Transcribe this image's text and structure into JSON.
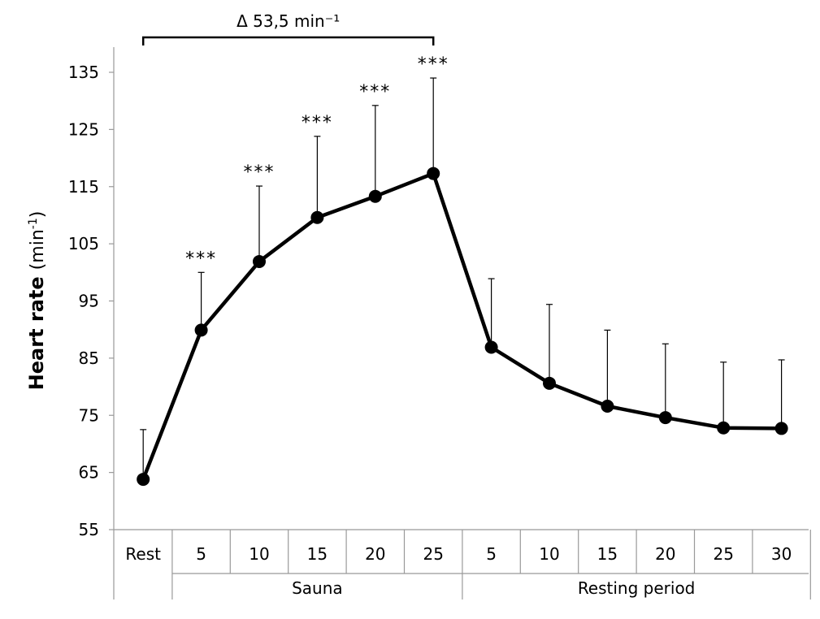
{
  "chart_data": {
    "type": "line",
    "ylabel": {
      "bold": "Heart rate",
      "unit": "(min-1)"
    },
    "ylim": [
      55,
      135
    ],
    "yticks": [
      "55",
      "65",
      "75",
      "85",
      "95",
      "105",
      "115",
      "125",
      "135"
    ],
    "categories": [
      "Rest",
      "5",
      "10",
      "15",
      "20",
      "25",
      "5",
      "10",
      "15",
      "20",
      "25",
      "30"
    ],
    "groups": [
      {
        "label": "Sauna",
        "span": [
          1,
          5
        ]
      },
      {
        "label": "Resting period",
        "span": [
          6,
          11
        ]
      }
    ],
    "series": [
      {
        "values": [
          63.8,
          89.9,
          101.9,
          109.6,
          113.3,
          117.3,
          86.9,
          80.6,
          76.6,
          74.6,
          72.8,
          72.7
        ],
        "error_upper": [
          72.5,
          100.0,
          115.1,
          123.8,
          129.2,
          134.0,
          98.9,
          94.4,
          89.9,
          87.5,
          84.3,
          84.7
        ]
      }
    ],
    "significance": [
      "",
      "***",
      "***",
      "***",
      "***",
      "***",
      "",
      "",
      "",
      "",
      "",
      ""
    ],
    "annotation": {
      "text": "Δ 53,5 min⁻¹",
      "from_category": 0,
      "to_category": 5
    },
    "grid": false,
    "legend": "none"
  }
}
